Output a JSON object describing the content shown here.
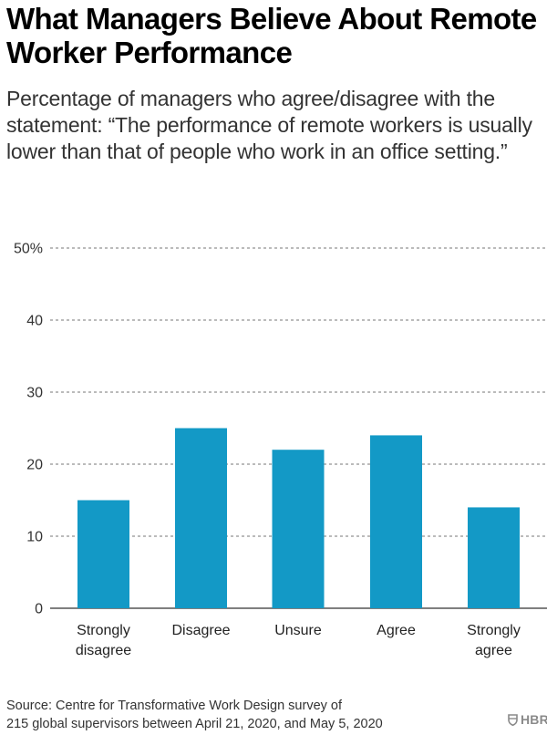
{
  "title": "What Managers Believe About Remote Worker Performance",
  "subtitle": "Percentage of managers who agree/disagree with the statement: “The performance of remote workers is usually lower than that of people who work in an office setting.”",
  "source_lines": [
    "Source: Centre for Transformative Work Design survey of",
    "215 global supervisors between April 21, 2020, and May 5, 2020"
  ],
  "logo": {
    "icon": "shield-icon",
    "text": "HBR",
    "color": "#8a8a8a"
  },
  "colors": {
    "bar": "#1399c6",
    "grid": "#777777",
    "axis": "#333333"
  },
  "chart_data": {
    "type": "bar",
    "categories": [
      "Strongly disagree",
      "Disagree",
      "Unsure",
      "Agree",
      "Strongly agree"
    ],
    "category_lines": [
      [
        "Strongly",
        "disagree"
      ],
      [
        "Disagree"
      ],
      [
        "Unsure"
      ],
      [
        "Agree"
      ],
      [
        "Strongly",
        "agree"
      ]
    ],
    "values": [
      15,
      25,
      22,
      24,
      14
    ],
    "y_ticks": [
      0,
      10,
      20,
      30,
      40,
      50
    ],
    "y_tick_labels": [
      "0",
      "10",
      "20",
      "30",
      "40",
      "50%"
    ],
    "ylim": [
      0,
      50
    ],
    "grid": true,
    "grid_style": "dashed",
    "legend": false
  }
}
